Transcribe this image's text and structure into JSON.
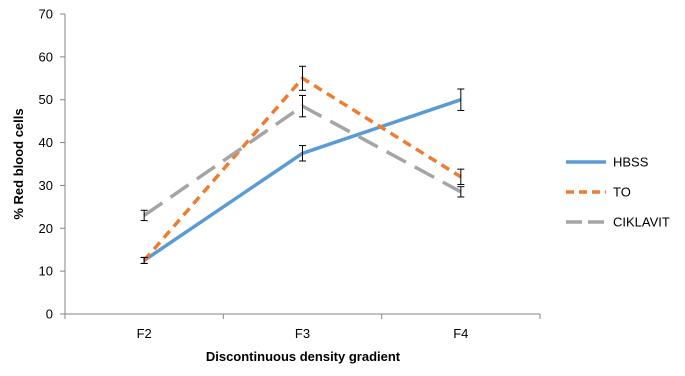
{
  "chart_data": {
    "type": "line",
    "title": "",
    "xlabel": "Discontinuous density gradient",
    "ylabel": "% Red blood cells",
    "categories": [
      "F2",
      "F3",
      "F4"
    ],
    "ylim": [
      0,
      70
    ],
    "yticks": [
      "0",
      "10",
      "20",
      "30",
      "40",
      "50",
      "60",
      "70"
    ],
    "grid": false,
    "legend_position": "right",
    "series": [
      {
        "name": "HBSS",
        "values": [
          12.5,
          37.5,
          50
        ],
        "errors": [
          0.7,
          1.8,
          2.5
        ],
        "color": "#5B9BD5",
        "style": "solid"
      },
      {
        "name": "TO",
        "values": [
          12.5,
          55,
          32
        ],
        "errors": [
          0.7,
          2.8,
          1.8
        ],
        "color": "#ED7D31",
        "style": "dashed"
      },
      {
        "name": "CIKLAVIT",
        "values": [
          23,
          48.5,
          28.5
        ],
        "errors": [
          1.2,
          2.5,
          1.2
        ],
        "color": "#A5A5A5",
        "style": "longdash"
      }
    ]
  }
}
